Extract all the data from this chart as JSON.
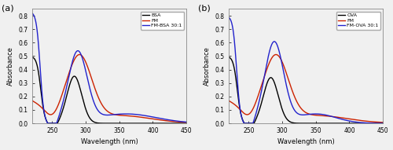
{
  "panel_a": {
    "title": "(a)",
    "xlabel": "Wavelength (nm)",
    "ylabel": "Absorbance",
    "xlim": [
      220,
      450
    ],
    "ylim": [
      0,
      0.85
    ],
    "yticks": [
      0.0,
      0.1,
      0.2,
      0.3,
      0.4,
      0.5,
      0.6,
      0.7,
      0.8
    ],
    "xticks": [
      250,
      300,
      350,
      400,
      450
    ],
    "legend": [
      "BSA",
      "FM",
      "FM-BSA 30:1"
    ],
    "colors": [
      "#000000",
      "#cc2200",
      "#2222cc"
    ]
  },
  "panel_b": {
    "title": "(b)",
    "xlabel": "Wavelength (nm)",
    "ylabel": "Absorbance",
    "xlim": [
      220,
      450
    ],
    "ylim": [
      0,
      0.85
    ],
    "yticks": [
      0.0,
      0.1,
      0.2,
      0.3,
      0.4,
      0.5,
      0.6,
      0.7,
      0.8
    ],
    "xticks": [
      250,
      300,
      350,
      400,
      450
    ],
    "legend": [
      "OVA",
      "FM",
      "FM-OVA 30:1"
    ],
    "colors": [
      "#000000",
      "#cc2200",
      "#2222cc"
    ]
  }
}
